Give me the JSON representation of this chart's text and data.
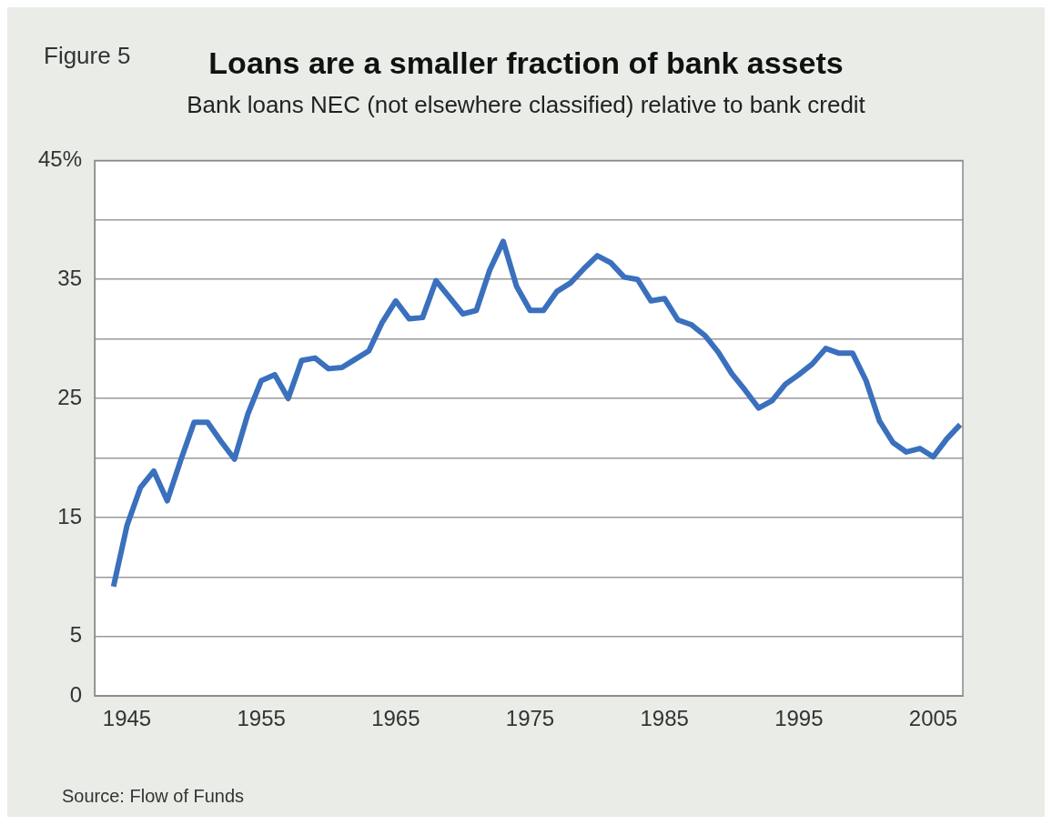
{
  "chart_data": {
    "type": "line",
    "title": "Loans are a smaller fraction of bank assets",
    "subtitle": "Bank loans NEC (not elsewhere classified) relative to bank credit",
    "annotations": [
      "Figure 5",
      "Source: Flow of Funds"
    ],
    "x": [
      1944,
      1945,
      1946,
      1947,
      1948,
      1949,
      1950,
      1951,
      1952,
      1953,
      1954,
      1955,
      1956,
      1957,
      1958,
      1959,
      1960,
      1961,
      1962,
      1963,
      1964,
      1965,
      1966,
      1967,
      1968,
      1969,
      1970,
      1971,
      1972,
      1973,
      1974,
      1975,
      1976,
      1977,
      1978,
      1979,
      1980,
      1981,
      1982,
      1983,
      1984,
      1985,
      1986,
      1987,
      1988,
      1989,
      1990,
      1991,
      1992,
      1993,
      1994,
      1995,
      1996,
      1997,
      1998,
      1999,
      2000,
      2001,
      2002,
      2003,
      2004,
      2005,
      2006,
      2007
    ],
    "series": [
      {
        "color": "#3a70bd",
        "values": [
          9.2,
          14.3,
          17.5,
          18.9,
          16.4,
          19.8,
          23.0,
          23.0,
          21.4,
          19.9,
          23.7,
          26.5,
          27.0,
          25.0,
          28.2,
          28.4,
          27.5,
          27.6,
          28.3,
          29.0,
          31.4,
          33.2,
          31.7,
          31.8,
          34.9,
          33.5,
          32.1,
          32.4,
          35.8,
          38.2,
          34.4,
          32.4,
          32.4,
          34.0,
          34.7,
          35.9,
          37.0,
          36.4,
          35.2,
          35.0,
          33.2,
          33.4,
          31.6,
          31.2,
          30.3,
          28.9,
          27.1,
          25.7,
          24.2,
          24.8,
          26.2,
          27.0,
          27.9,
          29.2,
          28.8,
          28.8,
          26.5,
          23.1,
          21.3,
          20.5,
          20.8,
          20.1,
          21.6,
          22.8
        ]
      }
    ],
    "xlim": [
      1942.6,
      2007.2
    ],
    "xticks": [
      1945,
      1955,
      1965,
      1975,
      1985,
      1995,
      2005
    ],
    "ylim": [
      0,
      45
    ],
    "yticks": [
      0,
      5,
      {
        "value": 10,
        "label": null
      },
      15,
      {
        "value": 20,
        "label": null
      },
      25,
      {
        "value": 30,
        "label": null
      },
      35,
      {
        "value": 40,
        "label": null
      },
      {
        "value": 45,
        "label": "45%"
      }
    ],
    "grid": "y",
    "legend": false,
    "marker": "none",
    "line_style": "solid"
  }
}
